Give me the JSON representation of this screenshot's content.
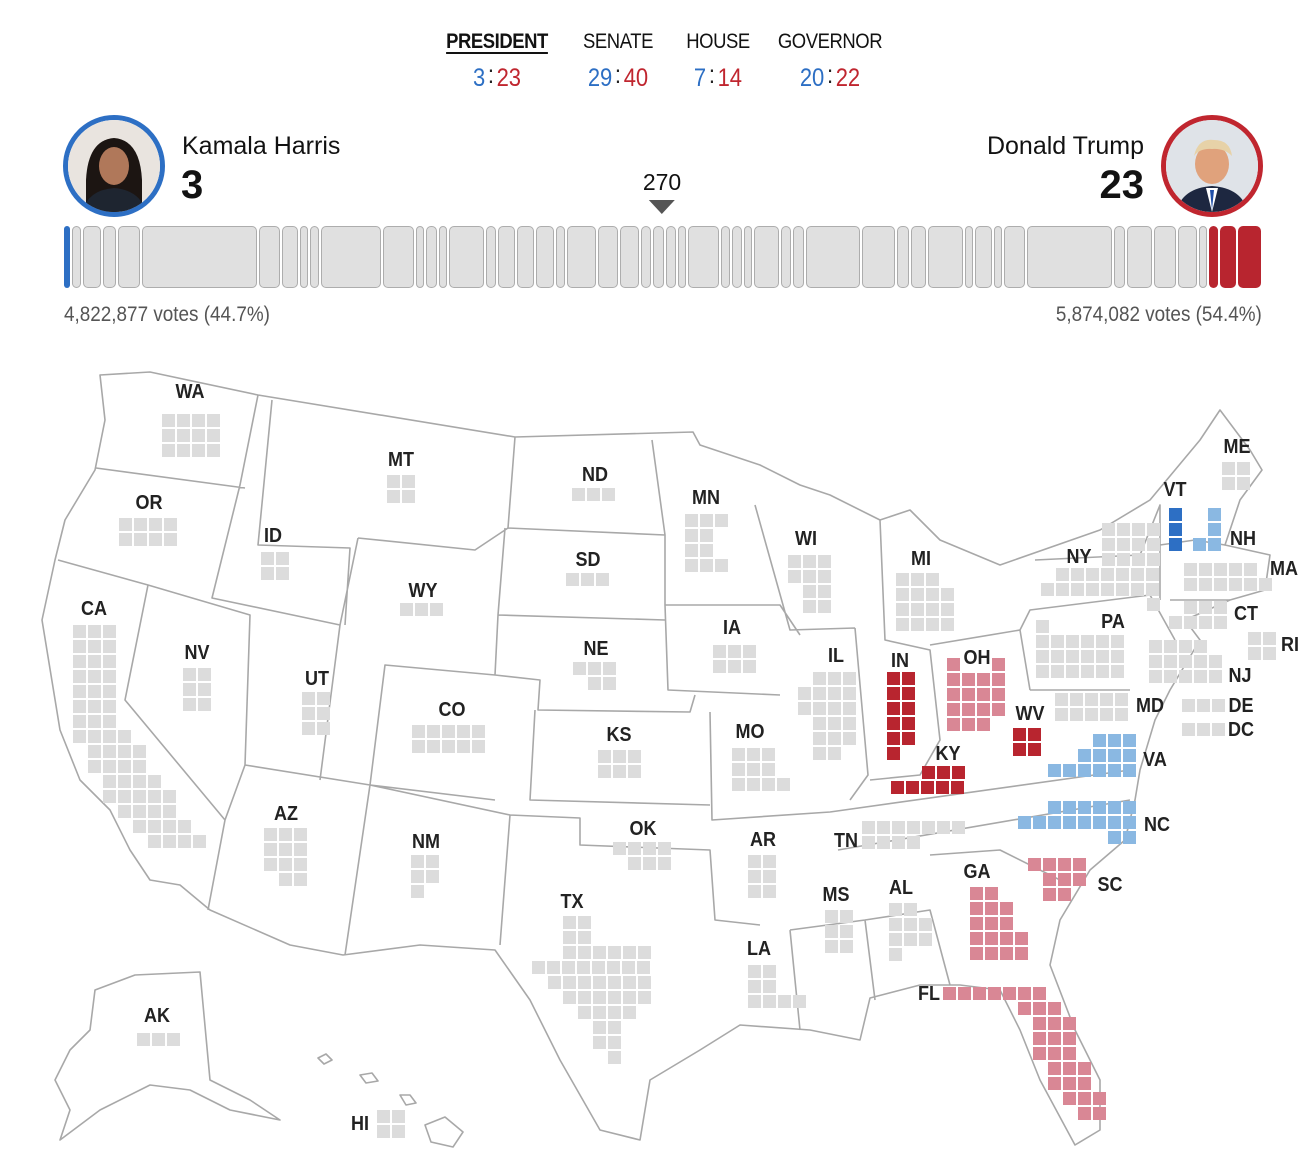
{
  "tabs": [
    {
      "label": "PRESIDENT",
      "dem": "3",
      "rep": "23",
      "active": true
    },
    {
      "label": "SENATE",
      "dem": "29",
      "rep": "40",
      "active": false
    },
    {
      "label": "HOUSE",
      "dem": "7",
      "rep": "14",
      "active": false
    },
    {
      "label": "GOVERNOR",
      "dem": "20",
      "rep": "22",
      "active": false
    }
  ],
  "candidates": {
    "dem": {
      "name": "Kamala Harris",
      "ev": "3",
      "votes": "4,822,877 votes (44.7%)",
      "color": "#2d6fc4"
    },
    "rep": {
      "name": "Donald Trump",
      "ev": "23",
      "votes": "5,874,082 votes (54.4%)",
      "color": "#c0262f"
    }
  },
  "threshold": "270",
  "colors": {
    "dem_win": "#2d6fc4",
    "dem_lead": "#8ab8e2",
    "rep_win": "#b8252f",
    "rep_lead": "#d98795",
    "pending": "#dcdcdc"
  },
  "bar_segments": [
    {
      "ev": 3,
      "party": "d"
    },
    {
      "ev": 3,
      "party": "g"
    },
    {
      "ev": 8,
      "party": "g"
    },
    {
      "ev": 5,
      "party": "g"
    },
    {
      "ev": 10,
      "party": "g"
    },
    {
      "ev": 54,
      "party": "g"
    },
    {
      "ev": 9,
      "party": "g"
    },
    {
      "ev": 7,
      "party": "g"
    },
    {
      "ev": 3,
      "party": "g"
    },
    {
      "ev": 3,
      "party": "g"
    },
    {
      "ev": 28,
      "party": "g"
    },
    {
      "ev": 14,
      "party": "g"
    },
    {
      "ev": 3,
      "party": "g"
    },
    {
      "ev": 4,
      "party": "g"
    },
    {
      "ev": 3,
      "party": "g"
    },
    {
      "ev": 16,
      "party": "g"
    },
    {
      "ev": 4,
      "party": "g"
    },
    {
      "ev": 7,
      "party": "g"
    },
    {
      "ev": 7,
      "party": "g"
    },
    {
      "ev": 8,
      "party": "g"
    },
    {
      "ev": 3,
      "party": "g"
    },
    {
      "ev": 13,
      "party": "g"
    },
    {
      "ev": 9,
      "party": "g"
    },
    {
      "ev": 8,
      "party": "g"
    },
    {
      "ev": 4,
      "party": "g"
    },
    {
      "ev": 4,
      "party": "g"
    },
    {
      "ev": 4,
      "party": "g"
    },
    {
      "ev": 3,
      "party": "g"
    },
    {
      "ev": 14,
      "party": "g"
    },
    {
      "ev": 3,
      "party": "g"
    },
    {
      "ev": 4,
      "party": "g"
    },
    {
      "ev": 3,
      "party": "g"
    },
    {
      "ev": 11,
      "party": "g"
    },
    {
      "ev": 4,
      "party": "g"
    },
    {
      "ev": 4,
      "party": "g"
    },
    {
      "ev": 25,
      "party": "g"
    },
    {
      "ev": 15,
      "party": "g"
    },
    {
      "ev": 5,
      "party": "g"
    },
    {
      "ev": 6,
      "party": "g"
    },
    {
      "ev": 16,
      "party": "g"
    },
    {
      "ev": 3,
      "party": "g"
    },
    {
      "ev": 7,
      "party": "g"
    },
    {
      "ev": 3,
      "party": "g"
    },
    {
      "ev": 9,
      "party": "g"
    },
    {
      "ev": 40,
      "party": "g"
    },
    {
      "ev": 4,
      "party": "g"
    },
    {
      "ev": 11,
      "party": "g"
    },
    {
      "ev": 10,
      "party": "g"
    },
    {
      "ev": 8,
      "party": "g"
    },
    {
      "ev": 3,
      "party": "g"
    },
    {
      "ev": 4,
      "party": "r"
    },
    {
      "ev": 8,
      "party": "r"
    },
    {
      "ev": 11,
      "party": "r"
    }
  ],
  "states": [
    {
      "abbr": "WA",
      "ev": 12,
      "status": "pending"
    },
    {
      "abbr": "OR",
      "ev": 8,
      "status": "pending"
    },
    {
      "abbr": "CA",
      "ev": 54,
      "status": "pending"
    },
    {
      "abbr": "NV",
      "ev": 6,
      "status": "pending"
    },
    {
      "abbr": "ID",
      "ev": 4,
      "status": "pending"
    },
    {
      "abbr": "MT",
      "ev": 4,
      "status": "pending"
    },
    {
      "abbr": "WY",
      "ev": 3,
      "status": "pending"
    },
    {
      "abbr": "UT",
      "ev": 6,
      "status": "pending"
    },
    {
      "abbr": "AZ",
      "ev": 11,
      "status": "pending"
    },
    {
      "abbr": "CO",
      "ev": 10,
      "status": "pending"
    },
    {
      "abbr": "NM",
      "ev": 5,
      "status": "pending"
    },
    {
      "abbr": "ND",
      "ev": 3,
      "status": "pending"
    },
    {
      "abbr": "SD",
      "ev": 3,
      "status": "pending"
    },
    {
      "abbr": "NE",
      "ev": 5,
      "status": "pending"
    },
    {
      "abbr": "KS",
      "ev": 6,
      "status": "pending"
    },
    {
      "abbr": "OK",
      "ev": 7,
      "status": "pending"
    },
    {
      "abbr": "TX",
      "ev": 40,
      "status": "pending"
    },
    {
      "abbr": "MN",
      "ev": 10,
      "status": "pending"
    },
    {
      "abbr": "IA",
      "ev": 6,
      "status": "pending"
    },
    {
      "abbr": "MO",
      "ev": 10,
      "status": "pending"
    },
    {
      "abbr": "AR",
      "ev": 6,
      "status": "pending"
    },
    {
      "abbr": "LA",
      "ev": 8,
      "status": "pending"
    },
    {
      "abbr": "WI",
      "ev": 10,
      "status": "pending"
    },
    {
      "abbr": "IL",
      "ev": 19,
      "status": "pending"
    },
    {
      "abbr": "MI",
      "ev": 15,
      "status": "pending"
    },
    {
      "abbr": "IN",
      "ev": 11,
      "status": "rep_win"
    },
    {
      "abbr": "OH",
      "ev": 17,
      "status": "rep_lead"
    },
    {
      "abbr": "KY",
      "ev": 8,
      "status": "rep_win"
    },
    {
      "abbr": "WV",
      "ev": 4,
      "status": "rep_win"
    },
    {
      "abbr": "TN",
      "ev": 11,
      "status": "pending"
    },
    {
      "abbr": "MS",
      "ev": 6,
      "status": "pending"
    },
    {
      "abbr": "AL",
      "ev": 9,
      "status": "pending"
    },
    {
      "abbr": "GA",
      "ev": 16,
      "status": "rep_lead"
    },
    {
      "abbr": "FL",
      "ev": 30,
      "status": "rep_lead"
    },
    {
      "abbr": "SC",
      "ev": 9,
      "status": "rep_lead"
    },
    {
      "abbr": "NC",
      "ev": 16,
      "status": "dem_lead"
    },
    {
      "abbr": "VA",
      "ev": 13,
      "status": "dem_lead"
    },
    {
      "abbr": "MD",
      "ev": 10,
      "status": "pending"
    },
    {
      "abbr": "DE",
      "ev": 3,
      "status": "pending"
    },
    {
      "abbr": "DC",
      "ev": 3,
      "status": "pending"
    },
    {
      "abbr": "PA",
      "ev": 19,
      "status": "pending"
    },
    {
      "abbr": "NJ",
      "ev": 14,
      "status": "pending"
    },
    {
      "abbr": "NY",
      "ev": 28,
      "status": "pending"
    },
    {
      "abbr": "VT",
      "ev": 3,
      "status": "dem_win"
    },
    {
      "abbr": "NH",
      "ev": 4,
      "status": "dem_lead"
    },
    {
      "abbr": "MA",
      "ev": 11,
      "status": "pending"
    },
    {
      "abbr": "CT",
      "ev": 7,
      "status": "pending"
    },
    {
      "abbr": "RI",
      "ev": 4,
      "status": "pending"
    },
    {
      "abbr": "ME",
      "ev": 4,
      "status": "pending"
    },
    {
      "abbr": "HI",
      "ev": 4,
      "status": "pending"
    },
    {
      "abbr": "AK",
      "ev": 3,
      "status": "pending"
    }
  ]
}
